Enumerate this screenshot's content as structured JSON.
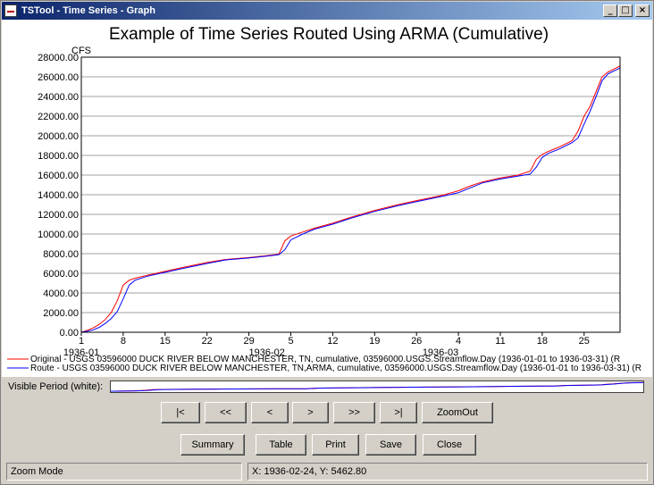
{
  "window": {
    "title": "TSTool - Time Series - Graph",
    "minimize_glyph": "_",
    "maximize_glyph": "□",
    "close_glyph": "×"
  },
  "chart_data": {
    "type": "line",
    "title": "Example of Time Series Routed Using ARMA (Cumulative)",
    "ylabel": "CFS",
    "ylim": [
      0,
      28000
    ],
    "xlim": [
      "1936-01-01",
      "1936-03-31"
    ],
    "grid": true,
    "y_ticks": [
      "0.00",
      "2000.00",
      "4000.00",
      "6000.00",
      "8000.00",
      "10000.00",
      "12000.00",
      "14000.00",
      "16000.00",
      "18000.00",
      "20000.00",
      "22000.00",
      "24000.00",
      "26000.00",
      "28000.00"
    ],
    "x_ticks": [
      {
        "date": "1936-01-01",
        "label": "1"
      },
      {
        "date": "1936-01-08",
        "label": "8"
      },
      {
        "date": "1936-01-15",
        "label": "15"
      },
      {
        "date": "1936-01-22",
        "label": "22"
      },
      {
        "date": "1936-01-29",
        "label": "29"
      },
      {
        "date": "1936-02-05",
        "label": "5"
      },
      {
        "date": "1936-02-12",
        "label": "12"
      },
      {
        "date": "1936-02-19",
        "label": "19"
      },
      {
        "date": "1936-02-26",
        "label": "26"
      },
      {
        "date": "1936-03-04",
        "label": "4"
      },
      {
        "date": "1936-03-11",
        "label": "11"
      },
      {
        "date": "1936-03-18",
        "label": "18"
      },
      {
        "date": "1936-03-25",
        "label": "25"
      }
    ],
    "x_month_labels": [
      {
        "date": "1936-01-01",
        "label": "1936-01"
      },
      {
        "date": "1936-02-01",
        "label": "1936-02"
      },
      {
        "date": "1936-03-01",
        "label": "1936-03"
      }
    ],
    "series": [
      {
        "name": "Original - USGS 03596000 DUCK RIVER BELOW MANCHESTER, TN, cumulative, 03596000.USGS.Streamflow.Day (1936-01-01 to 1936-03-31) (R",
        "color": "#ff0000",
        "x": [
          "1936-01-01",
          "1936-01-02",
          "1936-01-03",
          "1936-01-04",
          "1936-01-05",
          "1936-01-06",
          "1936-01-07",
          "1936-01-08",
          "1936-01-09",
          "1936-01-10",
          "1936-01-12",
          "1936-01-15",
          "1936-01-18",
          "1936-01-22",
          "1936-01-25",
          "1936-01-29",
          "1936-02-01",
          "1936-02-03",
          "1936-02-04",
          "1936-02-05",
          "1936-02-07",
          "1936-02-09",
          "1936-02-12",
          "1936-02-15",
          "1936-02-19",
          "1936-02-23",
          "1936-02-26",
          "1936-03-01",
          "1936-03-04",
          "1936-03-06",
          "1936-03-08",
          "1936-03-11",
          "1936-03-14",
          "1936-03-16",
          "1936-03-17",
          "1936-03-18",
          "1936-03-19",
          "1936-03-21",
          "1936-03-23",
          "1936-03-24",
          "1936-03-25",
          "1936-03-26",
          "1936-03-27",
          "1936-03-28",
          "1936-03-29",
          "1936-03-31"
        ],
        "y": [
          0,
          200,
          450,
          800,
          1300,
          2000,
          3200,
          4800,
          5300,
          5500,
          5800,
          6200,
          6600,
          7100,
          7400,
          7600,
          7800,
          7950,
          9300,
          9800,
          10200,
          10600,
          11100,
          11700,
          12400,
          13000,
          13400,
          13900,
          14400,
          14900,
          15300,
          15700,
          16000,
          16400,
          17600,
          18100,
          18400,
          18900,
          19500,
          20500,
          22000,
          23000,
          24500,
          26000,
          26500,
          27100
        ]
      },
      {
        "name": "Route - USGS 03596000 DUCK RIVER BELOW MANCHESTER, TN,ARMA, cumulative, 03596000.USGS.Streamflow.Day (1936-01-01 to 1936-03-31) (R",
        "color": "#0000ff",
        "x": [
          "1936-01-01",
          "1936-01-02",
          "1936-01-03",
          "1936-01-04",
          "1936-01-05",
          "1936-01-06",
          "1936-01-07",
          "1936-01-08",
          "1936-01-09",
          "1936-01-10",
          "1936-01-12",
          "1936-01-15",
          "1936-01-18",
          "1936-01-22",
          "1936-01-25",
          "1936-01-29",
          "1936-02-01",
          "1936-02-03",
          "1936-02-04",
          "1936-02-05",
          "1936-02-07",
          "1936-02-09",
          "1936-02-12",
          "1936-02-15",
          "1936-02-19",
          "1936-02-23",
          "1936-02-26",
          "1936-03-01",
          "1936-03-04",
          "1936-03-06",
          "1936-03-08",
          "1936-03-11",
          "1936-03-14",
          "1936-03-16",
          "1936-03-17",
          "1936-03-18",
          "1936-03-19",
          "1936-03-21",
          "1936-03-23",
          "1936-03-24",
          "1936-03-25",
          "1936-03-26",
          "1936-03-27",
          "1936-03-28",
          "1936-03-29",
          "1936-03-31"
        ],
        "y": [
          0,
          100,
          250,
          500,
          900,
          1400,
          2100,
          3400,
          4800,
          5300,
          5700,
          6100,
          6500,
          7000,
          7350,
          7550,
          7750,
          7900,
          8400,
          9400,
          10000,
          10500,
          11000,
          11600,
          12300,
          12900,
          13300,
          13800,
          14200,
          14700,
          15200,
          15600,
          15900,
          16100,
          16800,
          17800,
          18200,
          18700,
          19300,
          19800,
          21200,
          22500,
          24000,
          25600,
          26300,
          26900
        ]
      }
    ]
  },
  "visible_period": {
    "label": "Visible Period (white):"
  },
  "nav_buttons": {
    "first": "|<",
    "page_back": "<<",
    "back": "<",
    "forward": ">",
    "page_forward": ">>",
    "last": ">|",
    "zoom_out": "ZoomOut"
  },
  "action_buttons": {
    "summary": "Summary",
    "table": "Table",
    "print": "Print",
    "save": "Save",
    "close": "Close"
  },
  "status_bar": {
    "mode": "Zoom Mode",
    "coords": "X:  1936-02-24,  Y:  5462.80"
  }
}
